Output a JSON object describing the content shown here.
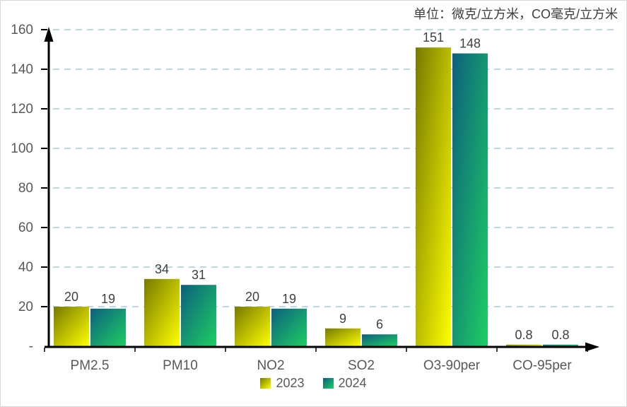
{
  "header": {
    "unit_label": "单位：微克/立方米，CO毫克/立方米"
  },
  "chart_data": {
    "type": "bar",
    "title": "",
    "categories": [
      "PM2.5",
      "PM10",
      "NO2",
      "SO2",
      "O3-90per",
      "CO-95per"
    ],
    "series": [
      {
        "name": "2023",
        "values": [
          20,
          34,
          20,
          9,
          151,
          0.8
        ],
        "labels": [
          "20",
          "34",
          "20",
          "9",
          "151",
          "0.8"
        ],
        "gradient_from": "#767a00",
        "gradient_to": "#ffff00"
      },
      {
        "name": "2024",
        "values": [
          19,
          31,
          19,
          6,
          148,
          0.8
        ],
        "labels": [
          "19",
          "31",
          "19",
          "6",
          "148",
          "0.8"
        ],
        "gradient_from": "#0d5f7e",
        "gradient_to": "#1fce63"
      }
    ],
    "xlabel": "",
    "ylabel": "",
    "ylim": [
      0,
      160
    ],
    "ytick_values": [
      0,
      20,
      40,
      60,
      80,
      100,
      120,
      140,
      160
    ],
    "ytick_labels": [
      "-",
      "20",
      "40",
      "60",
      "80",
      "100",
      "120",
      "140",
      "160"
    ],
    "grid": true,
    "gridline_style": "dashed",
    "gridline_color": "#bdd7ee",
    "axis_color": "#000000",
    "tick_label_color": "#595959",
    "value_label_color": "#404040",
    "legend_position": "bottom"
  }
}
